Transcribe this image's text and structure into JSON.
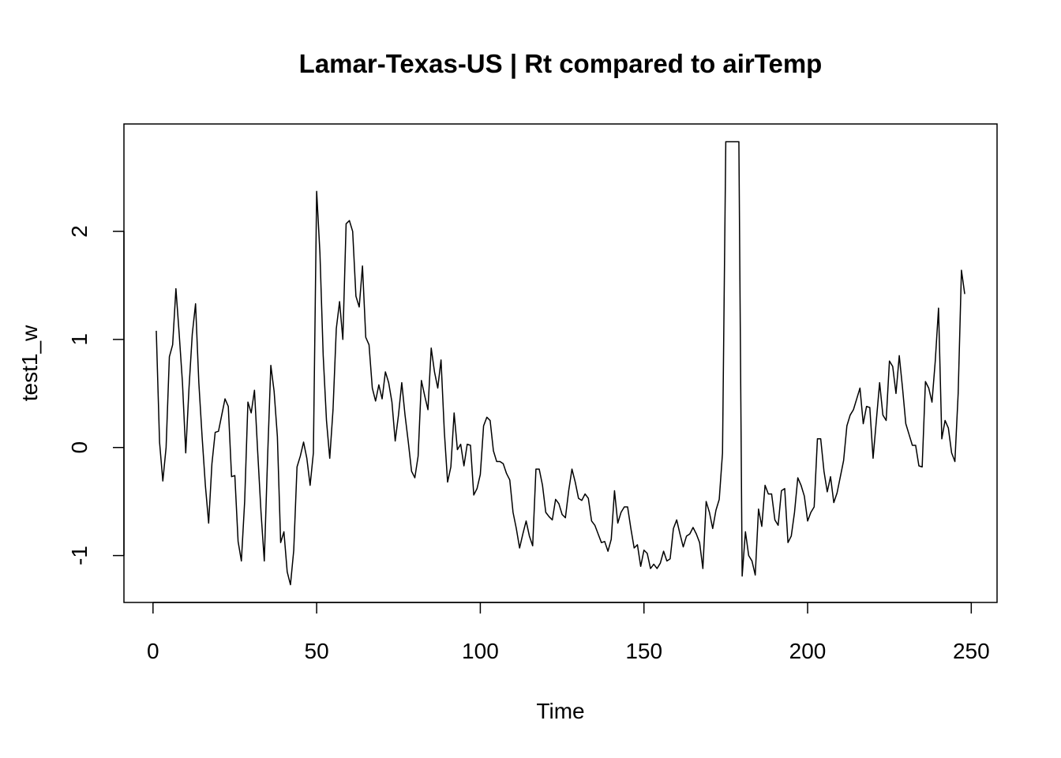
{
  "chart_data": {
    "type": "line",
    "title": "Lamar-Texas-US | Rt compared to airTemp",
    "x_label": "Time",
    "y_label": "test1_w",
    "color": "#000000",
    "x": [
      1,
      2,
      3,
      4,
      5,
      6,
      7,
      8,
      9,
      10,
      11,
      12,
      13,
      14,
      15,
      16,
      17,
      18,
      19,
      20,
      21,
      22,
      23,
      24,
      25,
      26,
      27,
      28,
      29,
      30,
      31,
      32,
      33,
      34,
      35,
      36,
      37,
      38,
      39,
      40,
      41,
      42,
      43,
      44,
      45,
      46,
      47,
      48,
      49,
      50,
      51,
      52,
      53,
      54,
      55,
      56,
      57,
      58,
      59,
      60,
      61,
      62,
      63,
      64,
      65,
      66,
      67,
      68,
      69,
      70,
      71,
      72,
      73,
      74,
      75,
      76,
      77,
      78,
      79,
      80,
      81,
      82,
      83,
      84,
      85,
      86,
      87,
      88,
      89,
      90,
      91,
      92,
      93,
      94,
      95,
      96,
      97,
      98,
      99,
      100,
      101,
      102,
      103,
      104,
      105,
      106,
      107,
      108,
      109,
      110,
      111,
      112,
      113,
      114,
      115,
      116,
      117,
      118,
      119,
      120,
      121,
      122,
      123,
      124,
      125,
      126,
      127,
      128,
      129,
      130,
      131,
      132,
      133,
      134,
      135,
      136,
      137,
      138,
      139,
      140,
      141,
      142,
      143,
      144,
      145,
      146,
      147,
      148,
      149,
      150,
      151,
      152,
      153,
      154,
      155,
      156,
      157,
      158,
      159,
      160,
      161,
      162,
      163,
      164,
      165,
      166,
      167,
      168,
      169,
      170,
      171,
      172,
      173,
      174,
      175,
      176,
      177,
      178,
      179,
      180,
      181,
      182,
      183,
      184,
      185,
      186,
      187,
      188,
      189,
      190,
      191,
      192,
      193,
      194,
      195,
      196,
      197,
      198,
      199,
      200,
      201,
      202,
      203,
      204,
      205,
      206,
      207,
      208,
      209,
      210,
      211,
      212,
      213,
      214,
      215,
      216,
      217,
      218,
      219,
      220,
      221,
      222,
      223,
      224,
      225,
      226,
      227,
      228,
      229,
      230,
      231,
      232,
      233,
      234,
      235,
      236,
      237,
      238,
      239,
      240,
      241,
      242,
      243,
      244,
      245,
      246,
      247,
      248
    ],
    "values": [
      1.08,
      0.05,
      -0.31,
      0.0,
      0.84,
      0.95,
      1.47,
      1.05,
      0.6,
      -0.05,
      0.55,
      1.05,
      1.33,
      0.6,
      0.1,
      -0.35,
      -0.7,
      -0.15,
      0.14,
      0.15,
      0.3,
      0.45,
      0.38,
      -0.27,
      -0.26,
      -0.87,
      -1.05,
      -0.5,
      0.42,
      0.32,
      0.53,
      -0.05,
      -0.6,
      -1.05,
      -0.1,
      0.76,
      0.52,
      0.1,
      -0.88,
      -0.78,
      -1.15,
      -1.27,
      -0.95,
      -0.18,
      -0.08,
      0.05,
      -0.1,
      -0.35,
      -0.05,
      2.37,
      1.8,
      0.85,
      0.25,
      -0.1,
      0.35,
      1.1,
      1.35,
      1.0,
      2.07,
      2.1,
      2.0,
      1.4,
      1.3,
      1.68,
      1.02,
      0.95,
      0.55,
      0.43,
      0.58,
      0.45,
      0.7,
      0.6,
      0.42,
      0.06,
      0.3,
      0.6,
      0.3,
      0.05,
      -0.22,
      -0.28,
      -0.08,
      0.62,
      0.48,
      0.35,
      0.92,
      0.7,
      0.55,
      0.81,
      0.15,
      -0.32,
      -0.18,
      0.32,
      -0.02,
      0.03,
      -0.17,
      0.03,
      0.02,
      -0.44,
      -0.38,
      -0.25,
      0.2,
      0.28,
      0.25,
      -0.03,
      -0.13,
      -0.13,
      -0.15,
      -0.24,
      -0.3,
      -0.6,
      -0.75,
      -0.93,
      -0.8,
      -0.68,
      -0.82,
      -0.91,
      -0.2,
      -0.2,
      -0.35,
      -0.6,
      -0.64,
      -0.67,
      -0.48,
      -0.52,
      -0.62,
      -0.65,
      -0.4,
      -0.2,
      -0.32,
      -0.47,
      -0.49,
      -0.43,
      -0.47,
      -0.68,
      -0.72,
      -0.8,
      -0.88,
      -0.87,
      -0.96,
      -0.85,
      -0.4,
      -0.7,
      -0.6,
      -0.55,
      -0.55,
      -0.75,
      -0.93,
      -0.9,
      -1.1,
      -0.95,
      -0.98,
      -1.12,
      -1.08,
      -1.12,
      -1.07,
      -0.96,
      -1.05,
      -1.03,
      -0.75,
      -0.67,
      -0.8,
      -0.92,
      -0.82,
      -0.8,
      -0.74,
      -0.8,
      -0.88,
      -1.12,
      -0.5,
      -0.6,
      -0.75,
      -0.58,
      -0.48,
      -0.05,
      2.83,
      2.83,
      2.83,
      2.83,
      2.83,
      -1.19,
      -0.78,
      -1.0,
      -1.05,
      -1.18,
      -0.57,
      -0.73,
      -0.35,
      -0.43,
      -0.43,
      -0.67,
      -0.72,
      -0.4,
      -0.38,
      -0.88,
      -0.82,
      -0.6,
      -0.28,
      -0.35,
      -0.45,
      -0.68,
      -0.6,
      -0.55,
      0.08,
      0.08,
      -0.22,
      -0.41,
      -0.27,
      -0.51,
      -0.42,
      -0.27,
      -0.12,
      0.2,
      0.3,
      0.35,
      0.45,
      0.55,
      0.22,
      0.38,
      0.37,
      -0.1,
      0.25,
      0.6,
      0.3,
      0.25,
      0.8,
      0.75,
      0.5,
      0.85,
      0.55,
      0.22,
      0.12,
      0.02,
      0.02,
      -0.17,
      -0.18,
      0.61,
      0.55,
      0.42,
      0.8,
      1.29,
      0.08,
      0.25,
      0.18,
      -0.05,
      -0.13,
      0.5,
      1.64,
      1.42
    ],
    "xlim": [
      -8.88,
      257.88
    ],
    "ylim": [
      -1.434,
      2.994
    ],
    "xticks": [
      0,
      50,
      100,
      150,
      200,
      250
    ],
    "yticks": [
      -1,
      0,
      1,
      2
    ]
  }
}
